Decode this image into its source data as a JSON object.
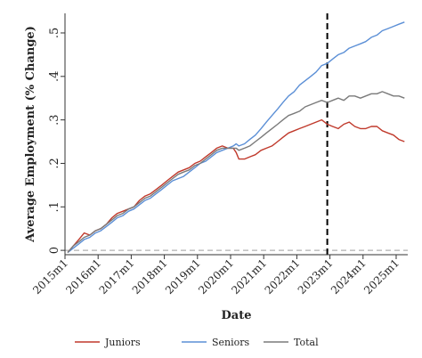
{
  "chart_data": {
    "type": "line",
    "title": "",
    "xlabel": "Date",
    "ylabel": "Average Employment (% Change)",
    "xlim": [
      2015.0,
      2025.35
    ],
    "ylim": [
      -0.01,
      0.545
    ],
    "x_ticks": [
      {
        "value": 2015,
        "label": "2015m1"
      },
      {
        "value": 2016,
        "label": "2016m1"
      },
      {
        "value": 2017,
        "label": "2017m1"
      },
      {
        "value": 2018,
        "label": "2018m1"
      },
      {
        "value": 2019,
        "label": "2019m1"
      },
      {
        "value": 2020,
        "label": "2020m1"
      },
      {
        "value": 2021,
        "label": "2021m1"
      },
      {
        "value": 2022,
        "label": "2022m1"
      },
      {
        "value": 2023,
        "label": "2023m1"
      },
      {
        "value": 2024,
        "label": "2024m1"
      },
      {
        "value": 2025,
        "label": "2025m1"
      }
    ],
    "y_ticks": [
      {
        "value": 0,
        "label": "0"
      },
      {
        "value": 0.1,
        "label": ".1"
      },
      {
        "value": 0.2,
        "label": ".2"
      },
      {
        "value": 0.3,
        "label": ".3"
      },
      {
        "value": 0.4,
        "label": ".4"
      },
      {
        "value": 0.5,
        "label": ".5"
      }
    ],
    "reference_lines": [
      {
        "axis": "y",
        "value": 0,
        "style": "dashed",
        "color": "#b0b0b0"
      },
      {
        "axis": "x",
        "value": 2022.92,
        "style": "dashed",
        "color": "#000000"
      }
    ],
    "legend_position": "bottom",
    "grid": false,
    "series": [
      {
        "name": "Juniors",
        "color": "#c0392b",
        "x": [
          2015.08,
          2015.25,
          2015.42,
          2015.58,
          2015.75,
          2015.92,
          2016.08,
          2016.25,
          2016.42,
          2016.58,
          2016.75,
          2016.92,
          2017.08,
          2017.25,
          2017.42,
          2017.58,
          2017.75,
          2017.92,
          2018.08,
          2018.25,
          2018.42,
          2018.58,
          2018.75,
          2018.92,
          2019.08,
          2019.25,
          2019.42,
          2019.58,
          2019.75,
          2019.92,
          2020.08,
          2020.17,
          2020.25,
          2020.42,
          2020.58,
          2020.75,
          2020.92,
          2021.08,
          2021.25,
          2021.42,
          2021.58,
          2021.75,
          2021.92,
          2022.08,
          2022.25,
          2022.42,
          2022.58,
          2022.75,
          2022.92,
          2023.08,
          2023.25,
          2023.42,
          2023.58,
          2023.75,
          2023.92,
          2024.08,
          2024.25,
          2024.42,
          2024.58,
          2024.75,
          2024.92,
          2025.08,
          2025.25
        ],
        "y": [
          -0.005,
          0.01,
          0.025,
          0.04,
          0.035,
          0.045,
          0.05,
          0.06,
          0.075,
          0.085,
          0.09,
          0.095,
          0.1,
          0.115,
          0.125,
          0.13,
          0.14,
          0.15,
          0.16,
          0.17,
          0.18,
          0.185,
          0.19,
          0.2,
          0.205,
          0.215,
          0.225,
          0.235,
          0.24,
          0.235,
          0.235,
          0.225,
          0.21,
          0.21,
          0.215,
          0.22,
          0.23,
          0.235,
          0.24,
          0.25,
          0.26,
          0.27,
          0.275,
          0.28,
          0.285,
          0.29,
          0.295,
          0.3,
          0.29,
          0.285,
          0.28,
          0.29,
          0.295,
          0.285,
          0.28,
          0.28,
          0.285,
          0.285,
          0.275,
          0.27,
          0.265,
          0.255,
          0.25
        ]
      },
      {
        "name": "Seniors",
        "color": "#5b8fd6",
        "x": [
          2015.08,
          2015.25,
          2015.42,
          2015.58,
          2015.75,
          2015.92,
          2016.08,
          2016.25,
          2016.42,
          2016.58,
          2016.75,
          2016.92,
          2017.08,
          2017.25,
          2017.42,
          2017.58,
          2017.75,
          2017.92,
          2018.08,
          2018.25,
          2018.42,
          2018.58,
          2018.75,
          2018.92,
          2019.08,
          2019.25,
          2019.42,
          2019.58,
          2019.75,
          2019.92,
          2020.08,
          2020.17,
          2020.25,
          2020.42,
          2020.58,
          2020.75,
          2020.92,
          2021.08,
          2021.25,
          2021.42,
          2021.58,
          2021.75,
          2021.92,
          2022.08,
          2022.25,
          2022.42,
          2022.58,
          2022.75,
          2022.92,
          2023.08,
          2023.25,
          2023.42,
          2023.58,
          2023.75,
          2023.92,
          2024.08,
          2024.25,
          2024.42,
          2024.58,
          2024.75,
          2024.92,
          2025.08,
          2025.25
        ],
        "y": [
          -0.005,
          0.005,
          0.015,
          0.025,
          0.03,
          0.04,
          0.045,
          0.055,
          0.065,
          0.075,
          0.08,
          0.09,
          0.095,
          0.105,
          0.115,
          0.12,
          0.13,
          0.14,
          0.15,
          0.16,
          0.165,
          0.17,
          0.18,
          0.19,
          0.2,
          0.205,
          0.215,
          0.225,
          0.23,
          0.235,
          0.24,
          0.245,
          0.24,
          0.245,
          0.255,
          0.265,
          0.28,
          0.295,
          0.31,
          0.325,
          0.34,
          0.355,
          0.365,
          0.38,
          0.39,
          0.4,
          0.41,
          0.425,
          0.43,
          0.44,
          0.45,
          0.455,
          0.465,
          0.47,
          0.475,
          0.48,
          0.49,
          0.495,
          0.505,
          0.51,
          0.515,
          0.52,
          0.525
        ]
      },
      {
        "name": "Total",
        "color": "#7a7a7a",
        "x": [
          2015.08,
          2015.25,
          2015.42,
          2015.58,
          2015.75,
          2015.92,
          2016.08,
          2016.25,
          2016.42,
          2016.58,
          2016.75,
          2016.92,
          2017.08,
          2017.25,
          2017.42,
          2017.58,
          2017.75,
          2017.92,
          2018.08,
          2018.25,
          2018.42,
          2018.58,
          2018.75,
          2018.92,
          2019.08,
          2019.25,
          2019.42,
          2019.58,
          2019.75,
          2019.92,
          2020.08,
          2020.17,
          2020.25,
          2020.42,
          2020.58,
          2020.75,
          2020.92,
          2021.08,
          2021.25,
          2021.42,
          2021.58,
          2021.75,
          2021.92,
          2022.08,
          2022.25,
          2022.42,
          2022.58,
          2022.75,
          2022.92,
          2023.08,
          2023.25,
          2023.42,
          2023.58,
          2023.75,
          2023.92,
          2024.08,
          2024.25,
          2024.42,
          2024.58,
          2024.75,
          2024.92,
          2025.08,
          2025.25
        ],
        "y": [
          -0.005,
          0.01,
          0.02,
          0.03,
          0.035,
          0.045,
          0.05,
          0.06,
          0.07,
          0.08,
          0.085,
          0.095,
          0.1,
          0.11,
          0.12,
          0.125,
          0.135,
          0.145,
          0.155,
          0.165,
          0.175,
          0.18,
          0.185,
          0.195,
          0.2,
          0.21,
          0.22,
          0.23,
          0.235,
          0.235,
          0.235,
          0.235,
          0.23,
          0.235,
          0.24,
          0.25,
          0.26,
          0.27,
          0.28,
          0.29,
          0.3,
          0.31,
          0.315,
          0.32,
          0.33,
          0.335,
          0.34,
          0.345,
          0.34,
          0.345,
          0.35,
          0.345,
          0.355,
          0.355,
          0.35,
          0.355,
          0.36,
          0.36,
          0.365,
          0.36,
          0.355,
          0.355,
          0.35
        ]
      }
    ]
  }
}
